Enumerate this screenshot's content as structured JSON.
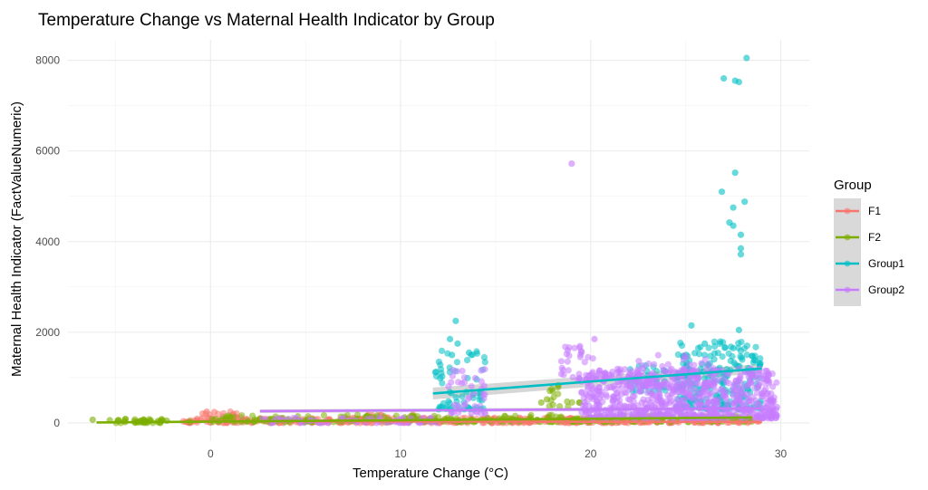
{
  "chart_data": {
    "type": "scatter",
    "title": "Temperature Change vs Maternal Health Indicator by Group",
    "xlabel": "Temperature Change (°C)",
    "ylabel": "Maternal Health Indicator (FactValueNumeric)",
    "xlim": [
      -7.5,
      31.5
    ],
    "ylim": [
      -400,
      8450
    ],
    "x_ticks": [
      0,
      10,
      20,
      30
    ],
    "x_tick_labels": [
      "0",
      "10",
      "20",
      "30"
    ],
    "y_ticks": [
      0,
      2000,
      4000,
      6000,
      8000
    ],
    "y_tick_labels": [
      "0",
      "2000",
      "4000",
      "6000",
      "8000"
    ],
    "grid": true,
    "legend": {
      "title": "Group",
      "position": "right",
      "entries": [
        "F1",
        "F2",
        "Group1",
        "Group2"
      ]
    },
    "series": [
      {
        "name": "F1",
        "color": "#F8766D",
        "fit": {
          "x": [
            -0.5,
            29.0
          ],
          "y": [
            40,
            20
          ],
          "se_band": 15
        },
        "clusters": [
          {
            "x": [
              -1.5,
              29.0
            ],
            "y": [
              0,
              120
            ],
            "n": 420
          },
          {
            "x": [
              -0.5,
              1.5
            ],
            "y": [
              100,
              260
            ],
            "n": 14
          },
          {
            "x": [
              8.0,
              12.0
            ],
            "y": [
              80,
              200
            ],
            "n": 12
          }
        ],
        "points": [
          [
            -0.2,
            250
          ],
          [
            0.2,
            240
          ],
          [
            1.2,
            200
          ],
          [
            8.5,
            170
          ],
          [
            9.0,
            170
          ]
        ]
      },
      {
        "name": "F2",
        "color": "#7CAE00",
        "fit": {
          "x": [
            -6.0,
            28.5
          ],
          "y": [
            10,
            120
          ],
          "se_band": 20
        },
        "clusters": [
          {
            "x": [
              -5.0,
              -2.5
            ],
            "y": [
              0,
              90
            ],
            "n": 40
          },
          {
            "x": [
              0.0,
              28.5
            ],
            "y": [
              20,
              180
            ],
            "n": 260
          },
          {
            "x": [
              17.5,
              19.5
            ],
            "y": [
              350,
              900
            ],
            "n": 14
          }
        ],
        "points": [
          [
            -6.2,
            70
          ],
          [
            -5.3,
            60
          ],
          [
            -3.5,
            70
          ],
          [
            -2.3,
            50
          ],
          [
            -1.1,
            30
          ],
          [
            17.7,
            520
          ],
          [
            18.0,
            700
          ],
          [
            18.3,
            830
          ],
          [
            17.4,
            450
          ]
        ]
      },
      {
        "name": "Group1",
        "color": "#00BFC4",
        "fit": {
          "x": [
            11.7,
            29.0
          ],
          "y": [
            650,
            1200
          ],
          "se_band": [
            130,
            100
          ]
        },
        "clusters": [
          {
            "x": [
              11.7,
              14.5
            ],
            "y": [
              300,
              1600
            ],
            "n": 60
          },
          {
            "x": [
              22.0,
              24.0
            ],
            "y": [
              700,
              1300
            ],
            "n": 30
          },
          {
            "x": [
              24.5,
              29.0
            ],
            "y": [
              300,
              1800
            ],
            "n": 230
          }
        ],
        "points": [
          [
            12.9,
            2250
          ],
          [
            12.6,
            1850
          ],
          [
            13.0,
            1750
          ],
          [
            12.7,
            1500
          ],
          [
            13.6,
            1550
          ],
          [
            25.3,
            2150
          ],
          [
            27.8,
            2050
          ],
          [
            26.0,
            1750
          ],
          [
            27.5,
            1650
          ],
          [
            28.2,
            8050
          ],
          [
            27.0,
            7600
          ],
          [
            27.6,
            7550
          ],
          [
            27.8,
            7520
          ],
          [
            27.6,
            5520
          ],
          [
            26.9,
            5100
          ],
          [
            28.1,
            4880
          ],
          [
            27.5,
            4750
          ],
          [
            27.3,
            4420
          ],
          [
            27.5,
            4350
          ],
          [
            27.9,
            4150
          ],
          [
            27.9,
            3850
          ],
          [
            27.9,
            3720
          ]
        ]
      },
      {
        "name": "Group2",
        "color": "#C77CFF",
        "fit": {
          "x": [
            2.6,
            29.0
          ],
          "y": [
            260,
            320
          ],
          "se_band": 40
        },
        "clusters": [
          {
            "x": [
              2.6,
              12.0
            ],
            "y": [
              0,
              120
            ],
            "n": 60
          },
          {
            "x": [
              12.5,
              14.5
            ],
            "y": [
              200,
              1200
            ],
            "n": 40
          },
          {
            "x": [
              18.3,
              20.5
            ],
            "y": [
              900,
              1700
            ],
            "n": 30
          },
          {
            "x": [
              19.5,
              29.8
            ],
            "y": [
              100,
              1200
            ],
            "n": 700
          },
          {
            "x": [
              22.5,
              26.5
            ],
            "y": [
              800,
              1500
            ],
            "n": 60
          }
        ],
        "points": [
          [
            19.0,
            5720
          ],
          [
            20.2,
            1850
          ],
          [
            18.8,
            1600
          ],
          [
            29.2,
            1150
          ],
          [
            29.8,
            350
          ],
          [
            29.5,
            500
          ]
        ]
      }
    ]
  }
}
